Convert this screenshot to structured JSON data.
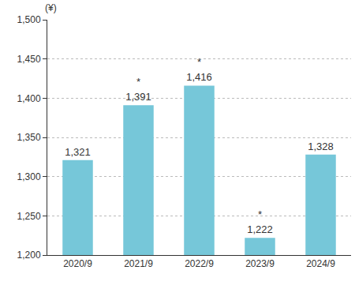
{
  "chart_data": {
    "type": "bar",
    "y_label": "(¥)",
    "categories": [
      "2020/9",
      "2021/9",
      "2022/9",
      "2023/9",
      "2024/9"
    ],
    "values": [
      1321,
      1391,
      1416,
      1222,
      1328
    ],
    "value_labels": [
      "1,321",
      "1,391",
      "1,416",
      "1,222",
      "1,328"
    ],
    "data_labels": true,
    "annotations": [
      {
        "category": "2021/9",
        "text": "*"
      },
      {
        "category": "2022/9",
        "text": "*"
      },
      {
        "category": "2023/9",
        "text": "*"
      }
    ],
    "color": "#76c7d9",
    "ylim": [
      1200,
      1500
    ],
    "yticks": [
      {
        "value": 1200,
        "label": "1,200"
      },
      {
        "value": 1250,
        "label": "1,250"
      },
      {
        "value": 1300,
        "label": "1,300"
      },
      {
        "value": 1350,
        "label": "1,350"
      },
      {
        "value": 1400,
        "label": "1,400"
      },
      {
        "value": 1450,
        "label": "1,450"
      },
      {
        "value": 1500,
        "label": "1,500"
      }
    ],
    "grid": true
  }
}
